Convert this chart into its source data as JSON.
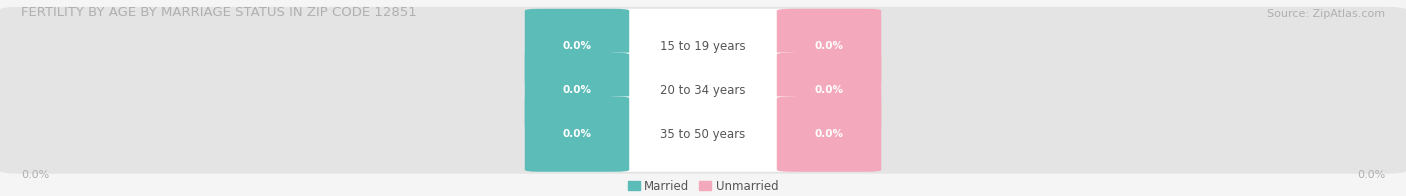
{
  "title": "FERTILITY BY AGE BY MARRIAGE STATUS IN ZIP CODE 12851",
  "source": "Source: ZipAtlas.com",
  "categories": [
    "15 to 19 years",
    "20 to 34 years",
    "35 to 50 years"
  ],
  "married_color": "#5bbcb8",
  "unmarried_color": "#f4a8bb",
  "bar_bg_color": "#e4e4e4",
  "bar_center_color": "#ffffff",
  "title_color": "#b0b0b0",
  "source_color": "#b0b0b0",
  "label_color_married": "#ffffff",
  "label_color_unmarried": "#ffffff",
  "category_label_color": "#555555",
  "axis_label_color": "#b0b0b0",
  "background_color": "#f5f5f5",
  "left_label": "0.0%",
  "right_label": "0.0%",
  "title_fontsize": 9.5,
  "source_fontsize": 8,
  "bar_label_fontsize": 7.5,
  "category_fontsize": 8.5,
  "legend_fontsize": 8.5,
  "axis_tick_fontsize": 8
}
